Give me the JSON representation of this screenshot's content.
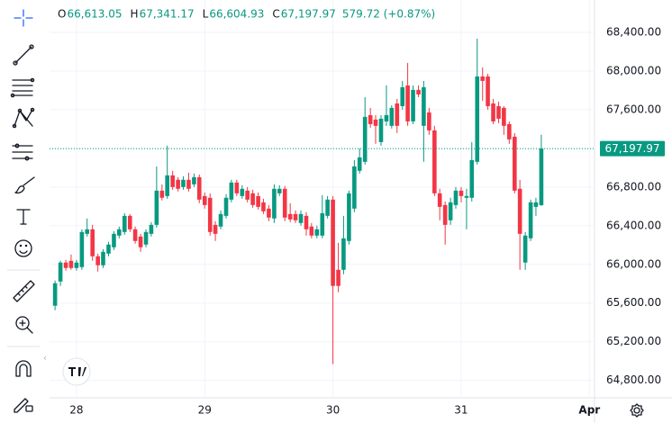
{
  "chart_data": {
    "type": "candlestick",
    "header": {
      "labels": [
        "O",
        "H",
        "L",
        "C"
      ],
      "values": [
        "66,613.05",
        "67,341.17",
        "66,604.93",
        "67,197.97"
      ],
      "change": "579.72 (+0.87%)"
    },
    "price_label": "67,197.97",
    "up_color": "#089981",
    "down_color": "#f23645",
    "grid": true,
    "xlim": [
      27.79,
      32.04
    ],
    "xticks": [
      28,
      29,
      30,
      31,
      {
        "value": 32,
        "label": "Apr"
      }
    ],
    "ylim": [
      64620,
      68735
    ],
    "yticks": [
      {
        "value": 64800,
        "label": "64,800.00"
      },
      {
        "value": 65200,
        "label": "65,200.00"
      },
      {
        "value": 65600,
        "label": "65,600.00"
      },
      {
        "value": 66000,
        "label": "66,000.00"
      },
      {
        "value": 66400,
        "label": "66,400.00"
      },
      {
        "value": 66800,
        "label": "66,800.00"
      },
      {
        "value": 67200,
        "label": "67,200.00"
      },
      {
        "value": 67600,
        "label": "67,600.00"
      },
      {
        "value": 68000,
        "label": "68,000.00"
      },
      {
        "value": 68400,
        "label": "68,400.00"
      }
    ],
    "x": [
      27.833,
      27.875,
      27.917,
      27.958,
      28.0,
      28.042,
      28.083,
      28.125,
      28.167,
      28.208,
      28.25,
      28.292,
      28.333,
      28.375,
      28.417,
      28.458,
      28.5,
      28.542,
      28.583,
      28.625,
      28.667,
      28.708,
      28.75,
      28.792,
      28.833,
      28.875,
      28.917,
      28.958,
      29.0,
      29.042,
      29.083,
      29.125,
      29.167,
      29.208,
      29.25,
      29.292,
      29.333,
      29.375,
      29.417,
      29.458,
      29.5,
      29.542,
      29.583,
      29.625,
      29.667,
      29.708,
      29.75,
      29.792,
      29.833,
      29.875,
      29.917,
      29.958,
      30.0,
      30.042,
      30.083,
      30.125,
      30.167,
      30.208,
      30.25,
      30.292,
      30.333,
      30.375,
      30.417,
      30.458,
      30.5,
      30.542,
      30.583,
      30.625,
      30.667,
      30.708,
      30.75,
      30.792,
      30.833,
      30.875,
      30.917,
      30.958,
      31.0,
      31.042,
      31.083,
      31.125,
      31.167,
      31.208,
      31.25,
      31.292,
      31.333,
      31.375,
      31.417,
      31.458,
      31.5,
      31.542,
      31.583,
      31.625
    ],
    "open": [
      65572,
      65823,
      66019,
      66037,
      65963,
      65972,
      66316,
      66363,
      66084,
      65991,
      66112,
      66177,
      66298,
      66335,
      66502,
      66363,
      66288,
      66205,
      66316,
      66409,
      66763,
      66707,
      66921,
      66875,
      66800,
      66875,
      66828,
      66902,
      66707,
      66689,
      66409,
      66391,
      66502,
      66670,
      66847,
      66707,
      66763,
      66735,
      66707,
      66642,
      66577,
      66475,
      66735,
      66782,
      66521,
      66521,
      66428,
      66502,
      66391,
      66298,
      66298,
      66502,
      66670,
      65944,
      65944,
      66242,
      66577,
      66968,
      67061,
      67544,
      67498,
      67265,
      67479,
      67433,
      67665,
      67637,
      67851,
      67479,
      67805,
      67433,
      67572,
      67386,
      66735,
      66614,
      66456,
      66614,
      66763,
      66689,
      66689,
      67061,
      67944,
      67944,
      67665,
      67637,
      67619,
      67451,
      67321,
      66782,
      66019,
      66270,
      66595,
      66613.05
    ],
    "high": [
      65833,
      66037,
      66047,
      66102,
      66047,
      66363,
      66475,
      66409,
      66112,
      66158,
      66233,
      66344,
      66391,
      66530,
      66521,
      66391,
      66316,
      66363,
      66437,
      67014,
      66828,
      67228,
      66968,
      66902,
      66912,
      66949,
      66940,
      66930,
      66744,
      66735,
      66447,
      66558,
      66726,
      66875,
      66875,
      66819,
      66800,
      66772,
      66744,
      66679,
      66614,
      66828,
      66819,
      66810,
      66633,
      66558,
      66558,
      66540,
      66428,
      66400,
      66716,
      66707,
      66707,
      66223,
      66502,
      66763,
      67079,
      67200,
      67730,
      67619,
      67544,
      67544,
      67851,
      67647,
      67712,
      67898,
      68084,
      67851,
      67851,
      67898,
      67619,
      67433,
      66782,
      66651,
      66689,
      66800,
      66800,
      66782,
      67265,
      68335,
      68037,
      67972,
      67712,
      67684,
      67637,
      67479,
      67358,
      66875,
      66335,
      66670,
      66689,
      67341.17
    ],
    "low": [
      65526,
      65777,
      65935,
      65944,
      65935,
      65944,
      66288,
      66037,
      65926,
      65963,
      66084,
      66149,
      66270,
      66307,
      66335,
      66214,
      66130,
      66177,
      66288,
      66381,
      66661,
      66679,
      66772,
      66754,
      66772,
      66754,
      66800,
      66633,
      66577,
      66298,
      66242,
      66363,
      66475,
      66642,
      66707,
      66679,
      66642,
      66586,
      66567,
      66521,
      66447,
      66428,
      66707,
      66447,
      66437,
      66428,
      66400,
      66298,
      66270,
      66270,
      66270,
      66475,
      64968,
      65712,
      65898,
      66205,
      66540,
      66940,
      67033,
      67414,
      67247,
      67228,
      67433,
      67405,
      67358,
      67600,
      67433,
      67451,
      67730,
      67061,
      67340,
      66707,
      66456,
      66205,
      66409,
      66577,
      66642,
      66363,
      66651,
      67033,
      67693,
      67600,
      67451,
      67461,
      67340,
      67247,
      66735,
      65944,
      65944,
      66242,
      66502,
      66604.93
    ],
    "close": [
      65805,
      66019,
      65963,
      65963,
      66019,
      66335,
      66363,
      66084,
      65991,
      66130,
      66205,
      66316,
      66363,
      66502,
      66363,
      66242,
      66177,
      66335,
      66409,
      66763,
      66689,
      66921,
      66800,
      66782,
      66875,
      66782,
      66902,
      66670,
      66614,
      66335,
      66316,
      66521,
      66689,
      66847,
      66735,
      66782,
      66670,
      66614,
      66595,
      66549,
      66484,
      66782,
      66782,
      66484,
      66465,
      66456,
      66521,
      66363,
      66298,
      66363,
      66530,
      66670,
      65777,
      65777,
      66270,
      66735,
      67014,
      67107,
      67526,
      67451,
      67433,
      67507,
      67544,
      67619,
      67433,
      67833,
      67479,
      67805,
      67758,
      67833,
      67386,
      66735,
      66595,
      66409,
      66642,
      66763,
      66707,
      66707,
      67079,
      67944,
      67898,
      67637,
      67479,
      67507,
      67433,
      67293,
      66763,
      66316,
      66298,
      66642,
      66642,
      67197.97
    ]
  }
}
